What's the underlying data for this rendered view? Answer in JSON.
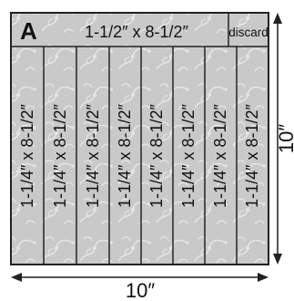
{
  "block": {
    "letter": "A",
    "top_strip_label": "1-1/2″ x 8-1/2″",
    "discard_label": "discard",
    "strip_labels": [
      "1-1/4″ x 8-1/2″",
      "1-1/4″ x 8-1/2″",
      "1-1/4″ x 8-1/2″",
      "1-1/4″ x 8-1/2″",
      "1-1/4″ x 8-1/2″",
      "1-1/4″ x 8-1/2″",
      "1-1/4″ x 8-1/2″",
      "1-1/4″ x 8-1/2″"
    ],
    "width_label": "10″",
    "height_label": "10″"
  },
  "colors": {
    "fabric": "#c9c9c9",
    "vine": "#e6e6e6",
    "outline": "#222222",
    "arrow": "#222222"
  }
}
